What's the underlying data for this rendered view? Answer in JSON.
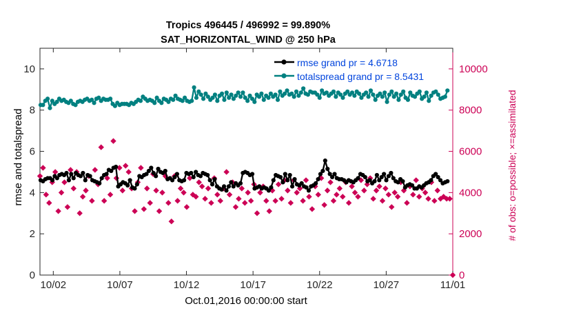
{
  "chart_data": {
    "type": "line",
    "title": [
      "Tropics 496445 / 496992 = 99.890%",
      "SAT_HORIZONTAL_WIND @ 250 hPa"
    ],
    "xlabel": "Oct.01,2016 00:00:00 start",
    "ylabel_left": "rmse and totalspread",
    "ylabel_right": "# of obs: o=possible; ×=assimilated",
    "ylim_left": [
      0,
      11
    ],
    "ylim_right": [
      0,
      11000
    ],
    "xlim": [
      0,
      31
    ],
    "x_ticks": [
      {
        "x": 1,
        "label": "10/02"
      },
      {
        "x": 6,
        "label": "10/07"
      },
      {
        "x": 11,
        "label": "10/12"
      },
      {
        "x": 16,
        "label": "10/17"
      },
      {
        "x": 21,
        "label": "10/22"
      },
      {
        "x": 26,
        "label": "10/27"
      },
      {
        "x": 31,
        "label": "11/01"
      }
    ],
    "y_ticks_left": [
      0,
      2,
      4,
      6,
      8,
      10
    ],
    "y_ticks_right": [
      0,
      2000,
      4000,
      6000,
      8000,
      10000
    ],
    "legend": [
      "rmse grand pr = 4.6718",
      "totalspread grand pr = 8.5431"
    ],
    "colors": {
      "rmse": "#000000",
      "spread": "#008080",
      "obs": "#cc0055",
      "legend_text": "#0044dd"
    },
    "series": [
      {
        "name": "rmse",
        "axis": "left",
        "values": [
          4.6,
          4.55,
          4.65,
          4.7,
          4.7,
          4.6,
          4.8,
          4.7,
          4.85,
          4.9,
          4.85,
          4.95,
          4.6,
          4.9,
          4.7,
          4.95,
          4.85,
          4.8,
          4.95,
          4.6,
          4.85,
          4.8,
          4.6,
          4.55,
          4.5,
          4.45,
          4.7,
          4.85,
          4.9,
          5.1,
          5.05,
          5.2,
          5.25,
          4.3,
          4.4,
          4.5,
          4.45,
          4.35,
          4.6,
          4.25,
          4.2,
          4.4,
          4.8,
          4.75,
          4.85,
          4.9,
          5.05,
          5.2,
          4.95,
          4.8,
          5.15,
          5.0,
          4.95,
          5.05,
          4.65,
          4.7,
          4.6,
          4.75,
          4.9,
          4.6,
          4.55,
          4.6,
          4.95,
          4.9,
          4.95,
          4.75,
          5.0,
          4.85,
          4.8,
          4.95,
          4.9,
          4.85,
          4.6,
          4.4,
          4.65,
          4.3,
          4.2,
          4.15,
          4.3,
          4.1,
          4.3,
          4.5,
          4.3,
          4.45,
          4.35,
          4.45,
          4.95,
          5.0,
          4.95,
          4.85,
          4.9,
          4.2,
          4.25,
          4.3,
          4.2,
          4.25,
          4.2,
          4.1,
          4.25,
          4.6,
          4.85,
          4.8,
          4.75,
          4.5,
          4.9,
          4.6,
          4.85,
          4.3,
          4.65,
          4.4,
          4.35,
          4.45,
          4.3,
          4.25,
          4.1,
          4.3,
          4.35,
          4.45,
          4.65,
          4.9,
          5.05,
          5.55,
          5.15,
          4.9,
          4.75,
          4.9,
          4.7,
          4.65,
          4.65,
          4.6,
          4.5,
          4.6,
          4.55,
          4.5,
          4.6,
          4.7,
          4.9,
          4.85,
          4.75,
          4.55,
          4.6,
          4.45,
          4.55,
          4.85,
          4.6,
          4.75,
          4.9,
          4.6,
          4.8,
          4.95,
          4.7,
          4.55,
          4.5,
          4.65,
          4.55,
          4.25,
          4.35,
          4.4,
          4.35,
          4.2,
          4.2,
          4.3,
          4.25,
          4.35,
          4.45,
          4.5,
          4.6,
          4.8,
          4.9,
          4.75,
          4.6,
          4.45,
          4.5,
          4.55
        ]
      },
      {
        "name": "totalspread",
        "axis": "left",
        "values": [
          8.25,
          8.25,
          8.45,
          8.55,
          8.1,
          8.45,
          8.3,
          8.4,
          8.55,
          8.45,
          8.5,
          8.4,
          8.35,
          8.45,
          8.3,
          8.25,
          8.4,
          8.45,
          8.4,
          8.5,
          8.55,
          8.45,
          8.5,
          8.35,
          8.55,
          8.6,
          8.45,
          8.55,
          8.5,
          8.5,
          8.55,
          8.3,
          8.2,
          8.35,
          8.25,
          8.3,
          8.3,
          8.3,
          8.25,
          8.35,
          8.3,
          8.4,
          8.5,
          8.45,
          8.65,
          8.55,
          8.45,
          8.5,
          8.45,
          8.35,
          8.6,
          8.45,
          8.35,
          8.55,
          8.5,
          8.4,
          8.55,
          8.5,
          8.7,
          8.55,
          8.5,
          8.45,
          8.6,
          8.45,
          8.4,
          8.45,
          9.1,
          8.6,
          8.9,
          8.75,
          8.55,
          8.8,
          8.65,
          8.5,
          8.6,
          8.75,
          8.45,
          8.7,
          8.8,
          8.5,
          8.85,
          8.6,
          8.75,
          8.55,
          8.7,
          8.85,
          8.65,
          8.85,
          8.6,
          8.45,
          8.7,
          8.55,
          8.4,
          8.75,
          8.65,
          8.8,
          8.5,
          8.7,
          8.6,
          8.8,
          8.65,
          8.75,
          8.5,
          8.9,
          8.7,
          8.8,
          8.95,
          8.75,
          8.8,
          8.65,
          8.9,
          8.7,
          8.85,
          9.05,
          8.8,
          8.75,
          8.9,
          8.85,
          8.85,
          8.75,
          8.6,
          8.95,
          8.8,
          8.85,
          8.7,
          8.8,
          8.9,
          8.65,
          8.85,
          8.75,
          8.6,
          8.8,
          8.9,
          8.75,
          8.85,
          8.7,
          8.9,
          8.8,
          8.6,
          8.75,
          8.85,
          8.65,
          8.95,
          8.75,
          8.5,
          8.7,
          8.8,
          8.65,
          8.85,
          8.4,
          8.75,
          8.9,
          8.65,
          8.8,
          8.5,
          8.75,
          8.9,
          8.6,
          8.5,
          8.85,
          8.7,
          8.65,
          8.8,
          8.9,
          8.55,
          8.65,
          8.85,
          8.45,
          8.7,
          8.85,
          8.9,
          8.75,
          8.55,
          8.6,
          8.65,
          8.95
        ]
      },
      {
        "name": "obs_possible",
        "axis": "right",
        "marker": "o",
        "values": [
          4800,
          5200,
          3900,
          3500,
          4500,
          5000,
          3100,
          4000,
          4500,
          3300,
          5100,
          4200,
          5000,
          3000,
          3800,
          4100,
          4800,
          3600,
          5100,
          4400,
          6200,
          3600,
          4700,
          3900,
          6500,
          4700,
          5200,
          4100,
          5300,
          5000,
          4200,
          3100,
          4500,
          5200,
          3200,
          4200,
          3500,
          4900,
          4100,
          3100,
          4000,
          4800,
          3500,
          2600,
          4800,
          3600,
          4200,
          4000,
          3300,
          4700,
          3900,
          3800,
          4500,
          4300,
          3700,
          4200,
          3500,
          4700,
          3900,
          3600,
          4200,
          5000,
          3900,
          4500,
          3300,
          3700,
          4200,
          3500,
          4000,
          3600,
          4400,
          3000,
          4000,
          4300,
          3600,
          3100,
          4100,
          3600,
          4400,
          3700,
          4600,
          4100,
          3500,
          4600,
          4000,
          4200,
          3600,
          4600,
          3800,
          3200,
          4300,
          3900,
          4700,
          3400,
          4100,
          4500,
          3600,
          3900,
          4200,
          3800,
          4500,
          3500,
          4300,
          4000,
          3800,
          4600,
          4100,
          4400,
          4700,
          3700,
          4100,
          4300,
          3600,
          4200,
          3900,
          3300,
          4000,
          3800,
          4500,
          4100,
          3500,
          4300,
          3900,
          4600,
          3800,
          4200,
          4000,
          3700,
          4500,
          3600,
          4100,
          3700,
          3800,
          3700,
          3700,
          0
        ]
      }
    ]
  }
}
